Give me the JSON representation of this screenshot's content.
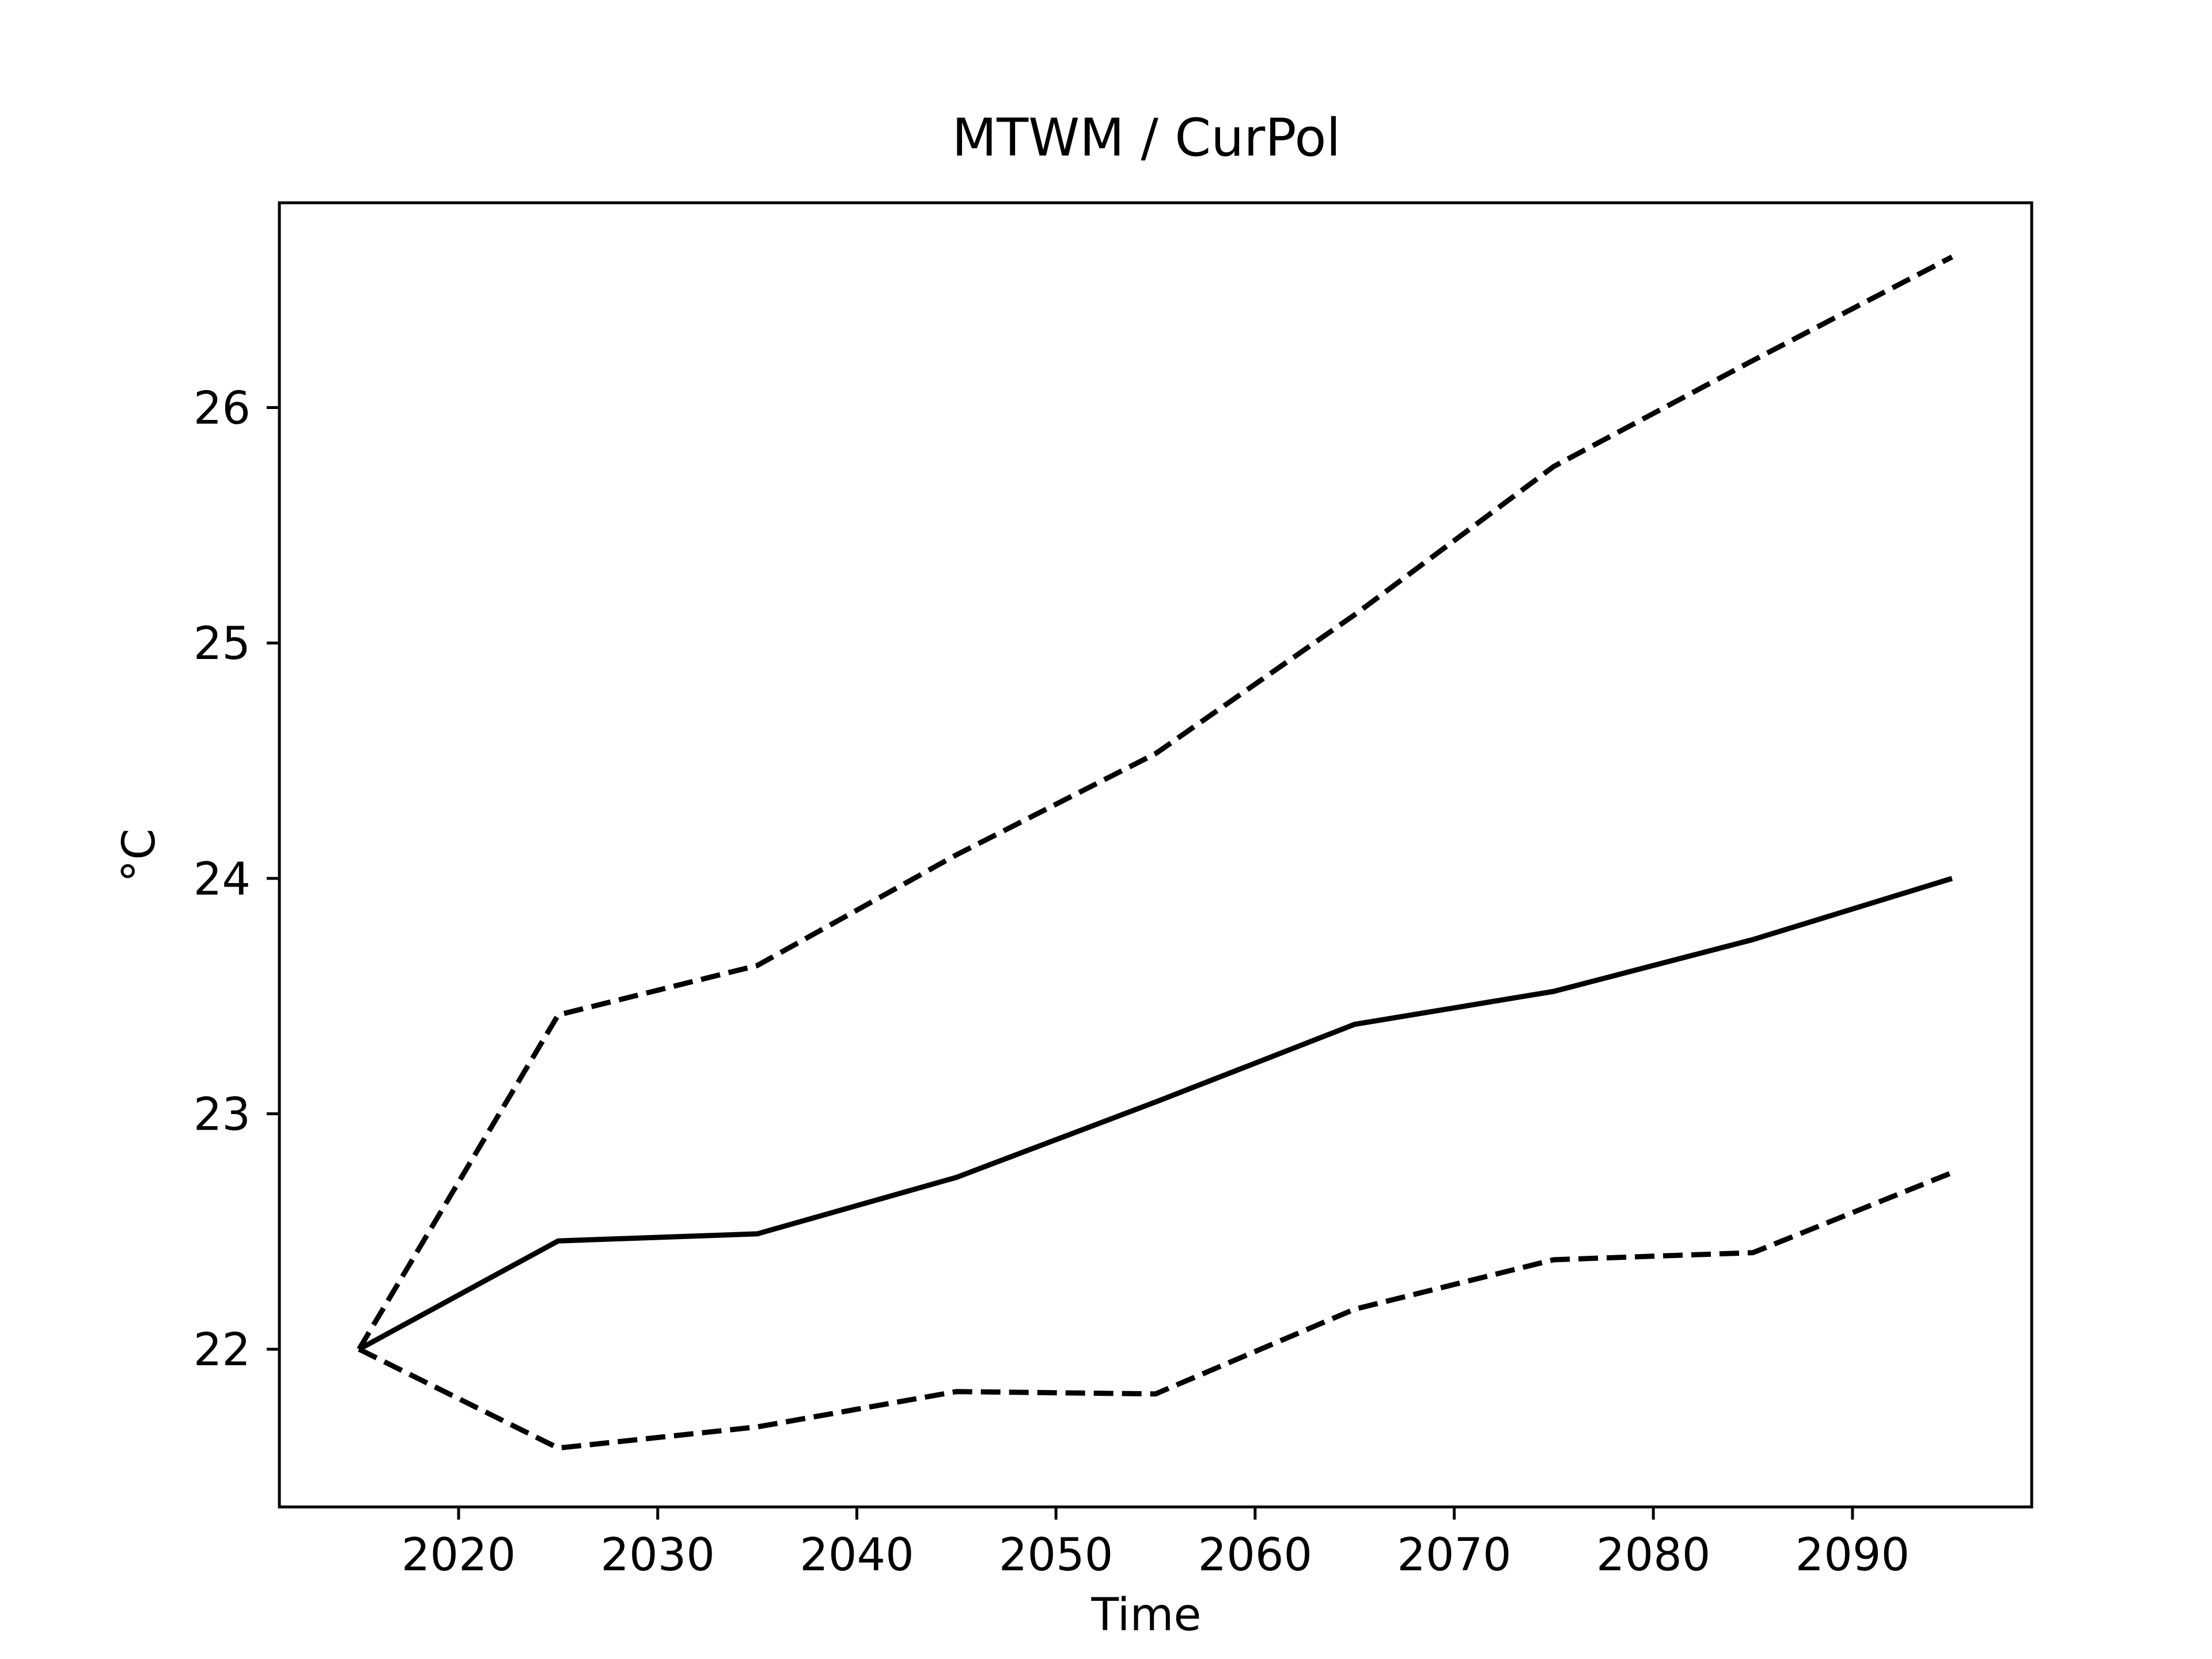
{
  "chart_data": {
    "type": "line",
    "title": "MTWM / CurPol",
    "xlabel": "Time",
    "ylabel": "°C",
    "xlim": [
      2011,
      2099
    ],
    "ylim": [
      21.33,
      26.87
    ],
    "x_ticks": [
      2020,
      2030,
      2040,
      2050,
      2060,
      2070,
      2080,
      2090
    ],
    "y_ticks": [
      22,
      23,
      24,
      25,
      26
    ],
    "grid": false,
    "legend": "none",
    "x": [
      2015,
      2025,
      2035,
      2045,
      2055,
      2065,
      2075,
      2085,
      2095
    ],
    "series": [
      {
        "style": "solid",
        "color": "#000000",
        "values": [
          22.0,
          22.46,
          22.49,
          22.73,
          23.05,
          23.38,
          23.52,
          23.74,
          24.0
        ]
      },
      {
        "style": "dashed",
        "color": "#000000",
        "values": [
          22.0,
          23.42,
          23.63,
          24.1,
          24.53,
          25.12,
          25.75,
          26.2,
          26.64
        ]
      },
      {
        "style": "dashed",
        "color": "#000000",
        "values": [
          22.0,
          21.58,
          21.67,
          21.82,
          21.81,
          22.17,
          22.38,
          22.41,
          22.75
        ]
      }
    ]
  }
}
